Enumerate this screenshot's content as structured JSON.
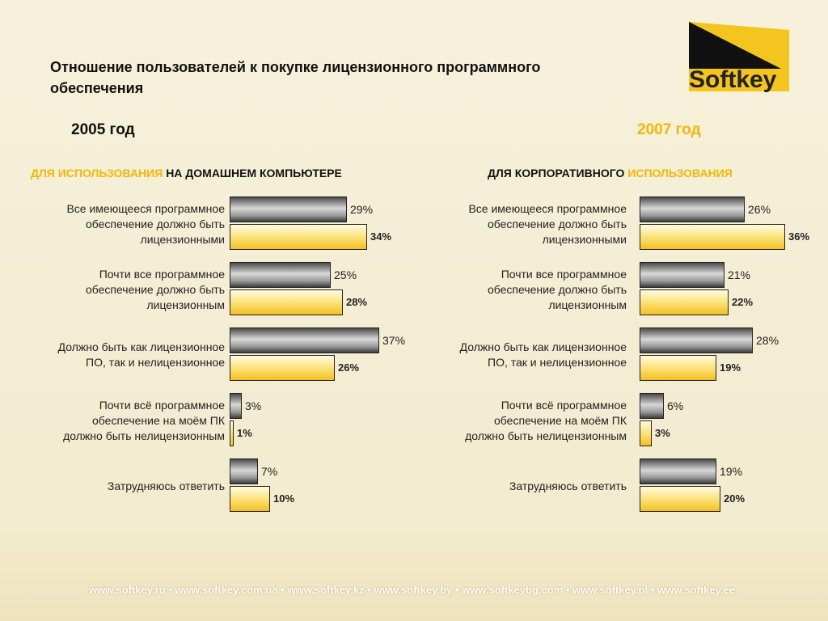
{
  "title": "Отношение пользователей к покупке лицензионного программного\nобеспечения",
  "logo": "Softkey",
  "footer": "www.softkey.ru • www.softkey.com.ua • www.softkey.kz • www.softkey.by • www.softkeybg.com • www.softkey.pl • www.softkey.ee",
  "chart_data": [
    {
      "type": "bar",
      "orientation": "horizontal",
      "title": "2005 год",
      "title_color": "#111111",
      "subtitle": [
        {
          "text": "ДЛЯ ИСПОЛЬЗОВАНИЯ",
          "color": "#f2b705"
        },
        {
          "text": "НА ДОМАШНЕМ КОМПЬЮТЕРЕ",
          "color": "#111111"
        }
      ],
      "categories": [
        "Все имеющееся программное\nобеспечение  должно быть\nлицензионными",
        "Почти все программное\nобеспечение должно быть\nлицензионным",
        "Должно быть как лицензионное\nПО, так и нелицензионное",
        "Почти всё программное\nобеспечение на моём ПК\nдолжно быть нелицензионным",
        "Затрудняюсь ответить"
      ],
      "series": [
        {
          "color": "#8c8c8c",
          "values": [
            29,
            25,
            37,
            3,
            7
          ],
          "value_labels": [
            "29%",
            "25%",
            "37%",
            "3%",
            "7%"
          ]
        },
        {
          "color": "#f9cf3a",
          "values": [
            34,
            28,
            26,
            1,
            10
          ],
          "value_labels": [
            "34%",
            "28%",
            "26%",
            "1%",
            "10%"
          ]
        }
      ]
    },
    {
      "type": "bar",
      "orientation": "horizontal",
      "title": "2007 год",
      "title_color": "#f2b705",
      "subtitle": [
        {
          "text": "ДЛЯ КОРПОРАТИВНОГО",
          "color": "#111111"
        },
        {
          "text": "ИСПОЛЬЗОВАНИЯ",
          "color": "#f2b705"
        }
      ],
      "categories": [
        "Все имеющееся программное\nобеспечение  должно быть\nлицензионными",
        "Почти все программное\nобеспечение должно быть\nлицензионным",
        "Должно быть как лицензионное\nПО, так и нелицензионное",
        "Почти всё программное\nобеспечение на моём ПК\nдолжно быть нелицензионным",
        "Затрудняюсь ответить"
      ],
      "series": [
        {
          "color": "#8c8c8c",
          "values": [
            26,
            21,
            28,
            6,
            19
          ],
          "value_labels": [
            "26%",
            "21%",
            "28%",
            "6%",
            "19%"
          ]
        },
        {
          "color": "#f9cf3a",
          "values": [
            36,
            22,
            19,
            3,
            20
          ],
          "value_labels": [
            "36%",
            "22%",
            "19%",
            "3%",
            "20%"
          ]
        }
      ]
    }
  ]
}
